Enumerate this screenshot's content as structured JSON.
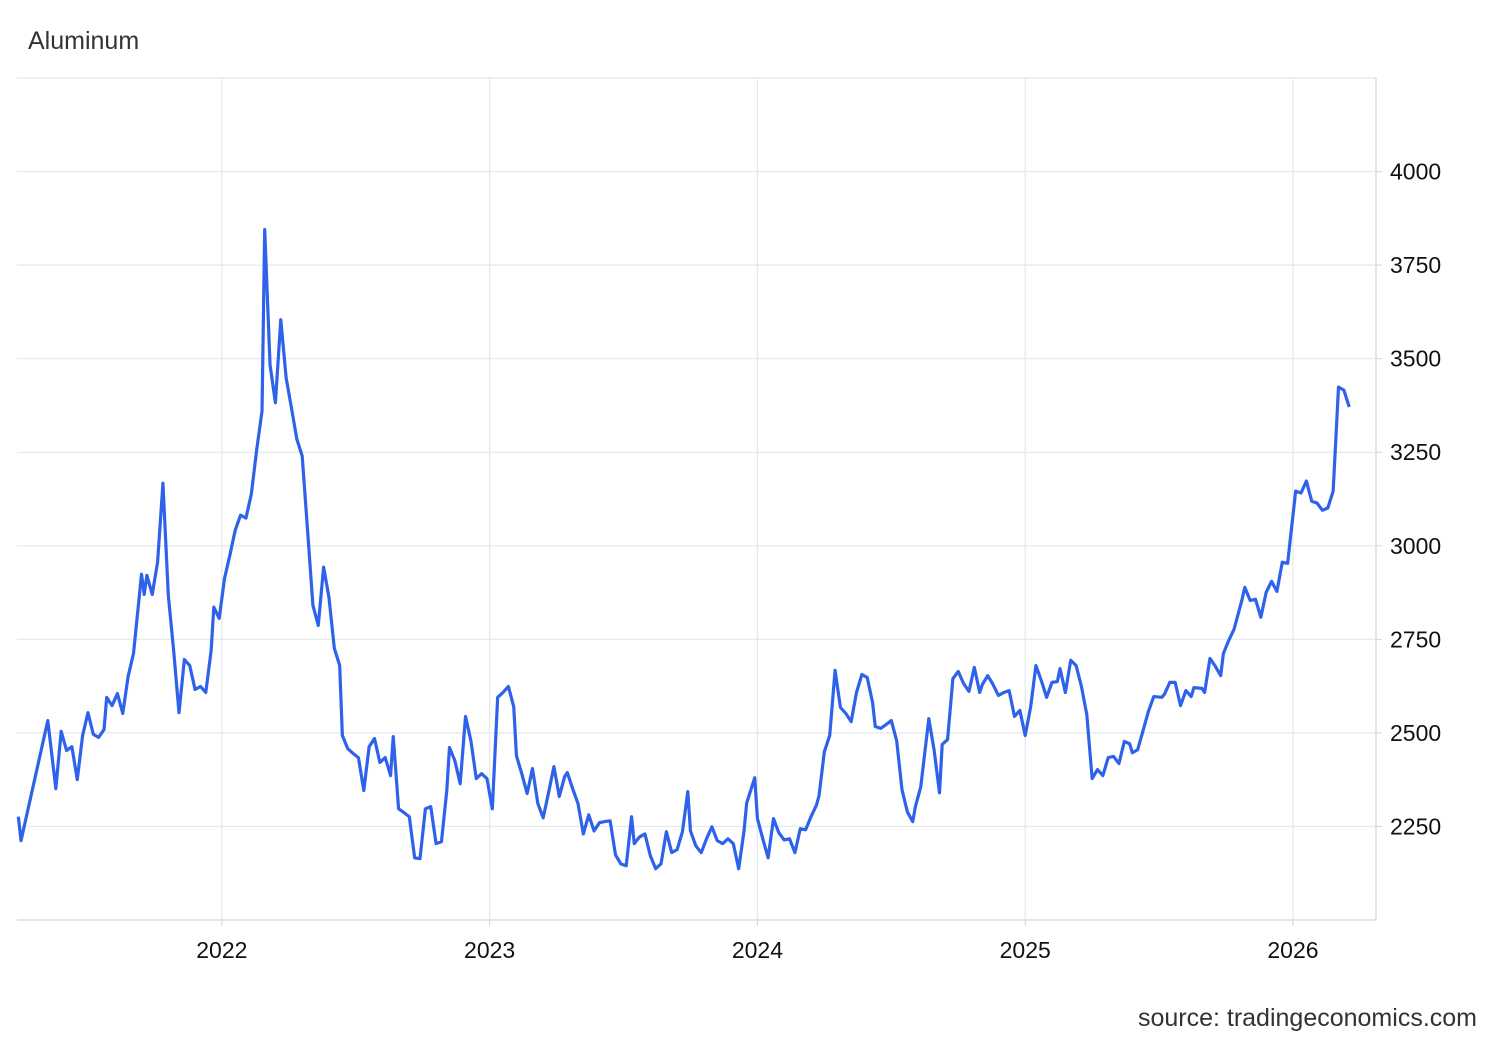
{
  "chart_data": {
    "type": "line",
    "title": "Aluminum",
    "source": "source: tradingeconomics.com",
    "color": "#2f62ea",
    "grid": true,
    "xlim": [
      2021.235,
      2026.31
    ],
    "xticks": [
      2022,
      2023,
      2024,
      2025,
      2026
    ],
    "ylim": [
      2000,
      4250
    ],
    "yticks": [
      2250,
      2500,
      2750,
      3000,
      3250,
      3500,
      3750,
      4000
    ],
    "x": [
      2021.24,
      2021.25,
      2021.35,
      2021.38,
      2021.4,
      2021.42,
      2021.44,
      2021.46,
      2021.48,
      2021.5,
      2021.52,
      2021.54,
      2021.56,
      2021.57,
      2021.59,
      2021.61,
      2021.63,
      2021.65,
      2021.67,
      2021.7,
      2021.71,
      2021.72,
      2021.74,
      2021.76,
      2021.78,
      2021.8,
      2021.82,
      2021.84,
      2021.86,
      2021.88,
      2021.9,
      2021.92,
      2021.94,
      2021.96,
      2021.97,
      2021.99,
      2022.01,
      2022.03,
      2022.05,
      2022.07,
      2022.09,
      2022.11,
      2022.13,
      2022.15,
      2022.16,
      2022.18,
      2022.2,
      2022.22,
      2022.24,
      2022.26,
      2022.28,
      2022.3,
      2022.32,
      2022.34,
      2022.36,
      2022.38,
      2022.4,
      2022.42,
      2022.44,
      2022.45,
      2022.47,
      2022.49,
      2022.51,
      2022.53,
      2022.55,
      2022.57,
      2022.59,
      2022.61,
      2022.63,
      2022.64,
      2022.66,
      2022.68,
      2022.7,
      2022.72,
      2022.74,
      2022.76,
      2022.78,
      2022.8,
      2022.82,
      2022.84,
      2022.85,
      2022.87,
      2022.89,
      2022.91,
      2022.93,
      2022.95,
      2022.97,
      2022.99,
      2023.01,
      2023.03,
      2023.05,
      2023.07,
      2023.09,
      2023.1,
      2023.12,
      2023.14,
      2023.16,
      2023.18,
      2023.2,
      2023.22,
      2023.24,
      2023.26,
      2023.28,
      2023.29,
      2023.31,
      2023.33,
      2023.35,
      2023.37,
      2023.39,
      2023.41,
      2023.43,
      2023.45,
      2023.47,
      2023.49,
      2023.51,
      2023.53,
      2023.54,
      2023.56,
      2023.58,
      2023.6,
      2023.62,
      2023.64,
      2023.66,
      2023.68,
      2023.7,
      2023.72,
      2023.74,
      2023.75,
      2023.77,
      2023.79,
      2023.81,
      2023.83,
      2023.85,
      2023.87,
      2023.89,
      2023.91,
      2023.93,
      2023.95,
      2023.96,
      2023.99,
      2024.0,
      2024.02,
      2024.04,
      2024.06,
      2024.08,
      2024.1,
      2024.12,
      2024.14,
      2024.16,
      2024.18,
      2024.2,
      2024.22,
      2024.23,
      2024.25,
      2024.27,
      2024.29,
      2024.31,
      2024.33,
      2024.35,
      2024.37,
      2024.39,
      2024.41,
      2024.43,
      2024.44,
      2024.46,
      2024.48,
      2024.5,
      2024.52,
      2024.54,
      2024.56,
      2024.58,
      2024.59,
      2024.61,
      2024.64,
      2024.66,
      2024.68,
      2024.69,
      2024.71,
      2024.73,
      2024.75,
      2024.77,
      2024.79,
      2024.81,
      2024.83,
      2024.84,
      2024.86,
      2024.88,
      2024.9,
      2024.92,
      2024.94,
      2024.96,
      2024.98,
      2025.0,
      2025.02,
      2025.04,
      2025.06,
      2025.08,
      2025.1,
      2025.12,
      2025.13,
      2025.15,
      2025.17,
      2025.19,
      2025.21,
      2025.23,
      2025.25,
      2025.27,
      2025.29,
      2025.31,
      2025.33,
      2025.35,
      2025.37,
      2025.39,
      2025.4,
      2025.42,
      2025.44,
      2025.46,
      2025.48,
      2025.51,
      2025.52,
      2025.54,
      2025.56,
      2025.58,
      2025.6,
      2025.62,
      2025.63,
      2025.66,
      2025.67,
      2025.69,
      2025.71,
      2025.73,
      2025.74,
      2025.76,
      2025.78,
      2025.81,
      2025.82,
      2025.84,
      2025.86,
      2025.88,
      2025.9,
      2025.92,
      2025.94,
      2025.96,
      2025.98,
      2025.99,
      2026.01,
      2026.03,
      2026.05,
      2026.07,
      2026.09,
      2026.11,
      2026.13,
      2026.15,
      2026.17,
      2026.19,
      2026.21
    ],
    "values": [
      2276,
      2212,
      2533,
      2351,
      2504,
      2453,
      2463,
      2375,
      2493,
      2554,
      2496,
      2488,
      2509,
      2595,
      2573,
      2605,
      2552,
      2651,
      2712,
      2924,
      2870,
      2921,
      2870,
      2956,
      3167,
      2868,
      2720,
      2554,
      2696,
      2680,
      2616,
      2624,
      2608,
      2720,
      2836,
      2806,
      2913,
      2975,
      3042,
      3082,
      3074,
      3138,
      3256,
      3360,
      3845,
      3483,
      3382,
      3604,
      3449,
      3368,
      3285,
      3240,
      3042,
      2841,
      2787,
      2943,
      2862,
      2726,
      2680,
      2493,
      2458,
      2445,
      2434,
      2346,
      2463,
      2485,
      2421,
      2434,
      2386,
      2490,
      2297,
      2287,
      2276,
      2166,
      2164,
      2297,
      2303,
      2204,
      2209,
      2346,
      2461,
      2426,
      2364,
      2544,
      2479,
      2378,
      2391,
      2378,
      2297,
      2595,
      2608,
      2624,
      2570,
      2439,
      2391,
      2338,
      2405,
      2311,
      2273,
      2340,
      2410,
      2330,
      2383,
      2394,
      2351,
      2311,
      2230,
      2281,
      2238,
      2260,
      2263,
      2265,
      2174,
      2150,
      2145,
      2276,
      2204,
      2222,
      2230,
      2172,
      2137,
      2150,
      2236,
      2180,
      2188,
      2236,
      2343,
      2238,
      2198,
      2180,
      2217,
      2249,
      2212,
      2204,
      2217,
      2204,
      2137,
      2238,
      2313,
      2380,
      2271,
      2217,
      2166,
      2271,
      2233,
      2214,
      2217,
      2180,
      2244,
      2241,
      2276,
      2306,
      2332,
      2450,
      2493,
      2667,
      2568,
      2552,
      2530,
      2608,
      2656,
      2648,
      2581,
      2517,
      2512,
      2522,
      2533,
      2479,
      2348,
      2289,
      2263,
      2303,
      2356,
      2538,
      2453,
      2340,
      2469,
      2482,
      2645,
      2664,
      2632,
      2611,
      2675,
      2608,
      2629,
      2653,
      2629,
      2600,
      2608,
      2613,
      2544,
      2560,
      2493,
      2568,
      2680,
      2640,
      2595,
      2635,
      2637,
      2672,
      2608,
      2694,
      2680,
      2624,
      2549,
      2378,
      2402,
      2386,
      2434,
      2437,
      2418,
      2477,
      2471,
      2447,
      2455,
      2506,
      2557,
      2597,
      2595,
      2603,
      2635,
      2635,
      2573,
      2613,
      2597,
      2621,
      2619,
      2608,
      2699,
      2678,
      2653,
      2712,
      2747,
      2777,
      2857,
      2889,
      2854,
      2857,
      2809,
      2876,
      2905,
      2878,
      2956,
      2953,
      3018,
      3146,
      3141,
      3173,
      3119,
      3114,
      3095,
      3101,
      3146,
      3424,
      3416,
      3371
    ]
  }
}
